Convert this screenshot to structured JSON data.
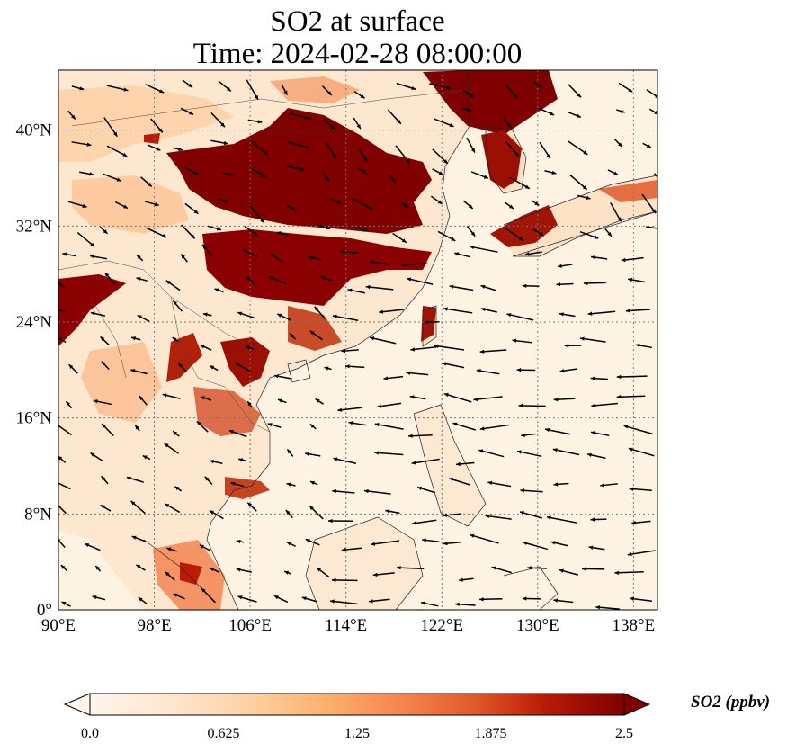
{
  "title": {
    "line1": "SO2 at surface",
    "line2": "Time: 2024-02-28 08:00:00"
  },
  "map": {
    "lon_range": [
      90,
      140
    ],
    "lat_range": [
      0,
      45
    ],
    "lon_ticks": [
      "90°E",
      "98°E",
      "106°E",
      "114°E",
      "122°E",
      "130°E",
      "138°E"
    ],
    "lat_ticks": [
      "0°",
      "8°N",
      "16°N",
      "24°N",
      "32°N",
      "40°N"
    ],
    "gridlines": true
  },
  "colorbar": {
    "ticks": [
      "0.0",
      "0.625",
      "1.25",
      "1.875",
      "2.5"
    ],
    "range": [
      0,
      2.5
    ],
    "units_label": "SO2 (ppbv)",
    "extend": "both",
    "colormap": [
      "#fff5eb",
      "#fdd9b4",
      "#fdae6b",
      "#f5844b",
      "#e05a2a",
      "#c0300a",
      "#8b0000",
      "#6e0000"
    ]
  },
  "colors": {
    "ocean_bg": "#fff3e4",
    "land_bg": "#fde6cc",
    "high": "#7f0000",
    "mid": "#d9613a"
  }
}
